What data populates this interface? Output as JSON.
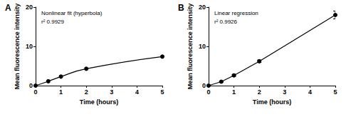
{
  "chart_data": [
    {
      "type": "line",
      "title": "A",
      "annotations": [
        "Nonlinear fit (hyperbola)",
        "r² 0.9929"
      ],
      "x_label": "Time (hours)",
      "y_label": "Mean fluorescence intensity",
      "x": [
        0,
        0.5,
        1,
        2,
        5
      ],
      "values": [
        0,
        1.1,
        2.3,
        4.3,
        7.4
      ],
      "xlim": [
        0,
        5
      ],
      "ylim": [
        0,
        20
      ],
      "xticks": [
        0,
        1,
        2,
        3,
        4,
        5
      ],
      "yticks": [
        0,
        10,
        20
      ],
      "color": "#000000",
      "marker": "circle",
      "line_style": "smooth",
      "grid": false
    },
    {
      "type": "line",
      "title": "B",
      "annotations": [
        "Linear regression",
        "r² 0.9926"
      ],
      "x_label": "Time (hours)",
      "y_label": "Mean fluorescence intensity",
      "x": [
        0,
        0.5,
        1,
        2,
        5
      ],
      "values": [
        0,
        1.0,
        2.6,
        6.2,
        18.0
      ],
      "errors": [
        0,
        0.1,
        0.2,
        0.3,
        1.0
      ],
      "xlim": [
        0,
        5
      ],
      "ylim": [
        0,
        20
      ],
      "xticks": [
        0,
        1,
        2,
        3,
        4,
        5
      ],
      "yticks": [
        0,
        10,
        20
      ],
      "color": "#000000",
      "marker": "circle",
      "line_style": "straight",
      "grid": false
    }
  ]
}
